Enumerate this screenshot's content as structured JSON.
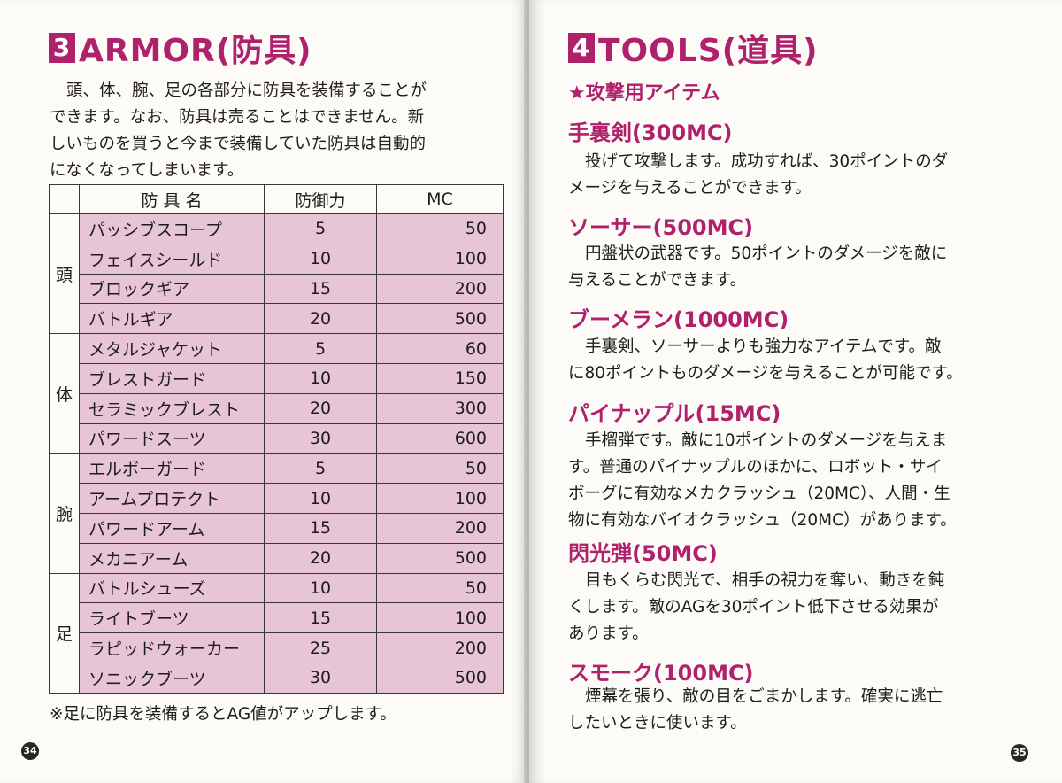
{
  "left_page": {
    "section_number": "3",
    "section_title": "ARMOR(防具)",
    "intro_lines": [
      "頭、体、腕、足の各部分に防具を装備することが",
      "できます。なお、防具は売ることはできません。新",
      "しいものを買うと今まで装備していた防具は自動的",
      "になくなってしまいます。"
    ],
    "table": {
      "headers": [
        "防 具 名",
        "防御力",
        "MC"
      ],
      "groups": [
        {
          "part": "頭",
          "rows": [
            {
              "name": "パッシブスコープ",
              "defense": "5",
              "mc": "50"
            },
            {
              "name": "フェイスシールド",
              "defense": "10",
              "mc": "100"
            },
            {
              "name": "ブロックギア",
              "defense": "15",
              "mc": "200"
            },
            {
              "name": "バトルギア",
              "defense": "20",
              "mc": "500"
            }
          ]
        },
        {
          "part": "体",
          "rows": [
            {
              "name": "メタルジャケット",
              "defense": "5",
              "mc": "60"
            },
            {
              "name": "ブレストガード",
              "defense": "10",
              "mc": "150"
            },
            {
              "name": "セラミックブレスト",
              "defense": "20",
              "mc": "300"
            },
            {
              "name": "パワードスーツ",
              "defense": "30",
              "mc": "600"
            }
          ]
        },
        {
          "part": "腕",
          "rows": [
            {
              "name": "エルボーガード",
              "defense": "5",
              "mc": "50"
            },
            {
              "name": "アームプロテクト",
              "defense": "10",
              "mc": "100"
            },
            {
              "name": "パワードアーム",
              "defense": "15",
              "mc": "200"
            },
            {
              "name": "メカニアーム",
              "defense": "20",
              "mc": "500"
            }
          ]
        },
        {
          "part": "足",
          "rows": [
            {
              "name": "バトルシューズ",
              "defense": "10",
              "mc": "50"
            },
            {
              "name": "ライトブーツ",
              "defense": "15",
              "mc": "100"
            },
            {
              "name": "ラピッドウォーカー",
              "defense": "25",
              "mc": "200"
            },
            {
              "name": "ソニックブーツ",
              "defense": "30",
              "mc": "500"
            }
          ]
        }
      ]
    },
    "footnote": "※足に防具を装備するとAG値がアップします。",
    "page_number": "34"
  },
  "right_page": {
    "section_number": "4",
    "section_title": "TOOLS(道具)",
    "subheading": "★攻撃用アイテム",
    "items": [
      {
        "name": "手裏剣(300MC)",
        "lines": [
          "投げて攻撃します。成功すれば、30ポイントのダ",
          "メージを与えることができます。"
        ]
      },
      {
        "name": "ソーサー(500MC)",
        "lines": [
          "円盤状の武器です。50ポイントのダメージを敵に",
          "与えることができます。"
        ]
      },
      {
        "name": "ブーメラン(1000MC)",
        "lines": [
          "手裏剣、ソーサーよりも強力なアイテムです。敵",
          "に80ポイントものダメージを与えることが可能です。"
        ]
      },
      {
        "name": "パイナップル(15MC)",
        "lines": [
          "手榴弾です。敵に10ポイントのダメージを与えま",
          "す。普通のパイナップルのほかに、ロボット・サイ",
          "ボーグに有効なメカクラッシュ（20MC）、人間・生",
          "物に有効なバイオクラッシュ（20MC）があります。"
        ]
      },
      {
        "name": "閃光弾(50MC)",
        "lines": [
          "目もくらむ閃光で、相手の視力を奪い、動きを鈍",
          "くします。敵のAGを30ポイント低下させる効果が",
          "あります。"
        ]
      },
      {
        "name": "スモーク(100MC)",
        "lines": [
          "煙幕を張り、敵の目をごまかします。確実に逃亡",
          "したいときに使います。"
        ]
      }
    ],
    "page_number": "35"
  },
  "colors": {
    "accent": "#b0216c",
    "table_fill": "#e8c5d5",
    "paper": "#fcfbf8"
  }
}
